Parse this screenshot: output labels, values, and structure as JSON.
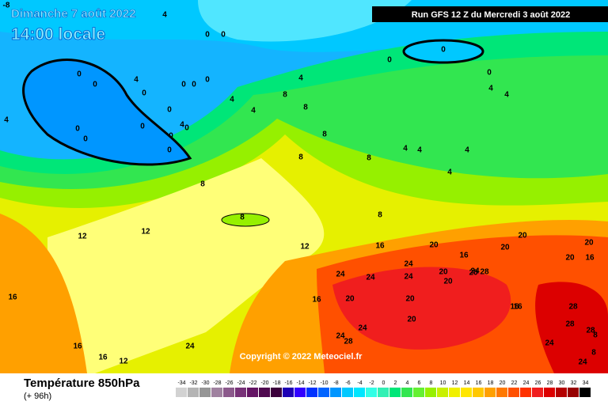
{
  "header": {
    "date": "Dimanche 7 août 2022",
    "time": "14:00 locale",
    "run": "Run GFS 12 Z du Mercredi 3 août 2022"
  },
  "map": {
    "copyright": "Copyright © 2022 Meteociel.fr",
    "contour_labels": [
      -8,
      4,
      0,
      0,
      0,
      0,
      4,
      0,
      0,
      0,
      4,
      0,
      4,
      0,
      0,
      4,
      8,
      8,
      8,
      0,
      4,
      0,
      0,
      0,
      4,
      0,
      0,
      0,
      0,
      4,
      4,
      4,
      4,
      4,
      8,
      8,
      4,
      8,
      8,
      8,
      12,
      12,
      12,
      16,
      20,
      20,
      16,
      20,
      20,
      20,
      16,
      24,
      24,
      20,
      24,
      24,
      24,
      20,
      16,
      20,
      20,
      20,
      16,
      28,
      28,
      24,
      24,
      20,
      28,
      24,
      28,
      16,
      16,
      16,
      16,
      12,
      24,
      28,
      24,
      8,
      8
    ]
  },
  "footer": {
    "title": "Température 850hPa",
    "subtitle": "(+ 96h)"
  },
  "legend": {
    "values": [
      -34,
      -32,
      -30,
      -28,
      -26,
      -24,
      -22,
      -20,
      -18,
      -16,
      -14,
      -12,
      -10,
      -8,
      -6,
      -4,
      -2,
      0,
      2,
      4,
      6,
      8,
      10,
      12,
      14,
      16,
      18,
      20,
      22,
      24,
      26,
      28,
      30,
      32,
      34
    ],
    "colors": [
      "#d2d2d2",
      "#b4b4b4",
      "#969696",
      "#a082a0",
      "#8c5a8c",
      "#783278",
      "#641464",
      "#500a50",
      "#3c003c",
      "#1e00b4",
      "#3200ff",
      "#0032ff",
      "#0064ff",
      "#0096ff",
      "#00c8ff",
      "#00e6ff",
      "#32ffe6",
      "#32f0b4",
      "#00e678",
      "#32e650",
      "#64f032",
      "#96f000",
      "#c8f000",
      "#f0f000",
      "#ffe600",
      "#ffc800",
      "#ffa000",
      "#ff7800",
      "#ff5000",
      "#ff3200",
      "#f01e1e",
      "#dc0000",
      "#b40000",
      "#960000",
      "#000000"
    ]
  }
}
